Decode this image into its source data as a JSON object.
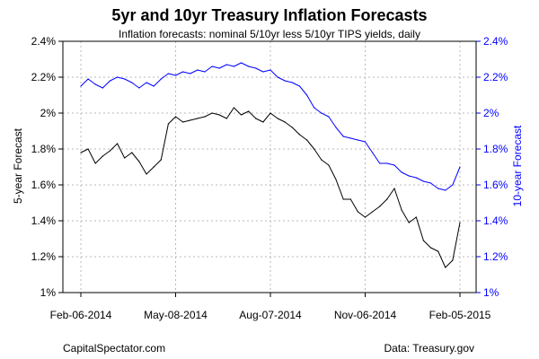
{
  "chart_data": {
    "type": "line",
    "title": "5yr and 10yr Treasury Inflation Forecasts",
    "subtitle": "Inflation forecasts: nominal 5/10yr less 5/10yr TIPS yields, daily",
    "ylabel_left": "5-year Forecast",
    "ylabel_right": "10-year Forecast",
    "x_ticks": [
      "Feb-06-2014",
      "May-08-2014",
      "Aug-07-2014",
      "Nov-06-2014",
      "Feb-05-2015"
    ],
    "y_ticks": [
      "1%",
      "1.2%",
      "1.4%",
      "1.6%",
      "1.8%",
      "2%",
      "2.2%",
      "2.4%"
    ],
    "ylim": [
      1.0,
      2.4
    ],
    "grid": true,
    "colors": {
      "five_year": "#000000",
      "ten_year": "#0000ff",
      "right_axis": "#0000ff"
    },
    "x": [
      "2014-02-06",
      "2014-02-13",
      "2014-02-20",
      "2014-02-27",
      "2014-03-06",
      "2014-03-13",
      "2014-03-20",
      "2014-03-27",
      "2014-04-03",
      "2014-04-10",
      "2014-04-17",
      "2014-04-24",
      "2014-05-01",
      "2014-05-08",
      "2014-05-15",
      "2014-05-22",
      "2014-05-29",
      "2014-06-05",
      "2014-06-12",
      "2014-06-19",
      "2014-06-26",
      "2014-07-03",
      "2014-07-10",
      "2014-07-17",
      "2014-07-24",
      "2014-07-31",
      "2014-08-07",
      "2014-08-14",
      "2014-08-21",
      "2014-08-28",
      "2014-09-04",
      "2014-09-11",
      "2014-09-18",
      "2014-09-25",
      "2014-10-02",
      "2014-10-09",
      "2014-10-16",
      "2014-10-23",
      "2014-10-30",
      "2014-11-06",
      "2014-11-13",
      "2014-11-20",
      "2014-11-27",
      "2014-12-04",
      "2014-12-11",
      "2014-12-18",
      "2014-12-25",
      "2015-01-01",
      "2015-01-08",
      "2015-01-15",
      "2015-01-22",
      "2015-01-29",
      "2015-02-05"
    ],
    "series": [
      {
        "name": "5-year Forecast",
        "values": [
          1.78,
          1.8,
          1.72,
          1.76,
          1.79,
          1.83,
          1.75,
          1.78,
          1.73,
          1.66,
          1.7,
          1.74,
          1.94,
          1.98,
          1.95,
          1.96,
          1.97,
          1.98,
          2.0,
          1.99,
          1.97,
          2.03,
          1.99,
          2.01,
          1.97,
          1.95,
          2.0,
          1.97,
          1.95,
          1.92,
          1.88,
          1.85,
          1.8,
          1.74,
          1.71,
          1.63,
          1.52,
          1.52,
          1.45,
          1.42,
          1.45,
          1.48,
          1.52,
          1.58,
          1.46,
          1.39,
          1.42,
          1.29,
          1.25,
          1.23,
          1.14,
          1.18,
          1.39
        ]
      },
      {
        "name": "10-year Forecast",
        "values": [
          2.15,
          2.19,
          2.16,
          2.14,
          2.18,
          2.2,
          2.19,
          2.17,
          2.14,
          2.17,
          2.15,
          2.19,
          2.22,
          2.21,
          2.23,
          2.22,
          2.24,
          2.23,
          2.26,
          2.25,
          2.27,
          2.26,
          2.28,
          2.26,
          2.25,
          2.23,
          2.24,
          2.2,
          2.18,
          2.17,
          2.15,
          2.1,
          2.03,
          2.0,
          1.98,
          1.92,
          1.87,
          1.86,
          1.85,
          1.84,
          1.78,
          1.72,
          1.72,
          1.71,
          1.67,
          1.65,
          1.64,
          1.62,
          1.61,
          1.58,
          1.57,
          1.6,
          1.7
        ]
      }
    ]
  },
  "footer": {
    "left": "CapitalSpectator.com",
    "right": "Data: Treasury.gov"
  }
}
